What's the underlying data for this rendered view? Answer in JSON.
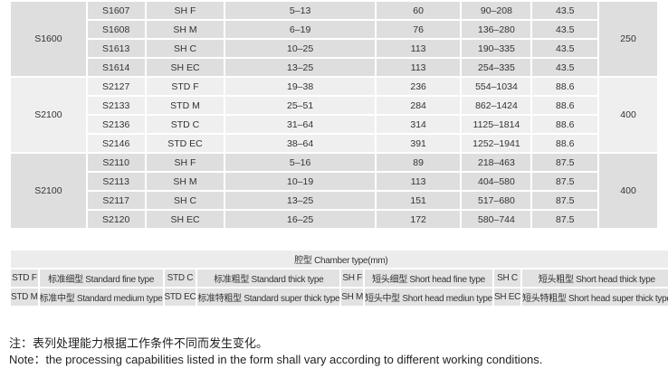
{
  "groups": [
    {
      "series": "S1600",
      "col8": "250",
      "rows": [
        {
          "model": "S1607",
          "type": "SH F",
          "range": "5–13",
          "c5": "60",
          "c6": "90–208",
          "c7": "43.5"
        },
        {
          "model": "S1608",
          "type": "SH M",
          "range": "6–19",
          "c5": "76",
          "c6": "136–280",
          "c7": "43.5"
        },
        {
          "model": "S1613",
          "type": "SH C",
          "range": "10–25",
          "c5": "113",
          "c6": "190–335",
          "c7": "43.5"
        },
        {
          "model": "S1614",
          "type": "SH EC",
          "range": "13–25",
          "c5": "113",
          "c6": "254–335",
          "c7": "43.5"
        }
      ]
    },
    {
      "series": "S2100",
      "col8": "400",
      "rows": [
        {
          "model": "S2127",
          "type": "STD F",
          "range": "19–38",
          "c5": "236",
          "c6": "554–1034",
          "c7": "88.6"
        },
        {
          "model": "S2133",
          "type": "STD M",
          "range": "25–51",
          "c5": "284",
          "c6": "862–1424",
          "c7": "88.6"
        },
        {
          "model": "S2136",
          "type": "STD C",
          "range": "31–64",
          "c5": "314",
          "c6": "1125–1814",
          "c7": "88.6"
        },
        {
          "model": "S2146",
          "type": "STD EC",
          "range": "38–64",
          "c5": "391",
          "c6": "1252–1941",
          "c7": "88.6"
        }
      ]
    },
    {
      "series": "S2100",
      "col8": "400",
      "rows": [
        {
          "model": "S2110",
          "type": "SH F",
          "range": "5–16",
          "c5": "89",
          "c6": "218–463",
          "c7": "87.5"
        },
        {
          "model": "S2113",
          "type": "SH M",
          "range": "10–19",
          "c5": "113",
          "c6": "404–580",
          "c7": "87.5"
        },
        {
          "model": "S2117",
          "type": "SH C",
          "range": "13–25",
          "c5": "151",
          "c6": "517–680",
          "c7": "87.5"
        },
        {
          "model": "S2120",
          "type": "SH EC",
          "range": "16–25",
          "c5": "172",
          "c6": "580–744",
          "c7": "87.5"
        }
      ]
    }
  ],
  "legend": {
    "title": "腔型 Chamber type(mm)",
    "rows": [
      [
        {
          "code": "STD F",
          "desc": "标准细型 Standard fine type"
        },
        {
          "code": "STD C",
          "desc": "标准粗型 Standard thick type"
        },
        {
          "code": "SH F",
          "desc": "短头细型 Short head fine type"
        },
        {
          "code": "SH C",
          "desc": "短头粗型 Short head thick type"
        }
      ],
      [
        {
          "code": "STD M",
          "desc": "标准中型 Standard medium type"
        },
        {
          "code": "STD EC",
          "desc": "标准特粗型 Standard super thick type"
        },
        {
          "code": "SH M",
          "desc": "短头中型 Short head mediun type"
        },
        {
          "code": "SH EC",
          "desc": "短头特粗型 Short head super thick type"
        }
      ]
    ]
  },
  "note": {
    "zh": "注：表列处理能力根据工作条件不同而发生变化。",
    "en": "Note：the processing capabilities listed in the form shall vary according to different working conditions."
  }
}
